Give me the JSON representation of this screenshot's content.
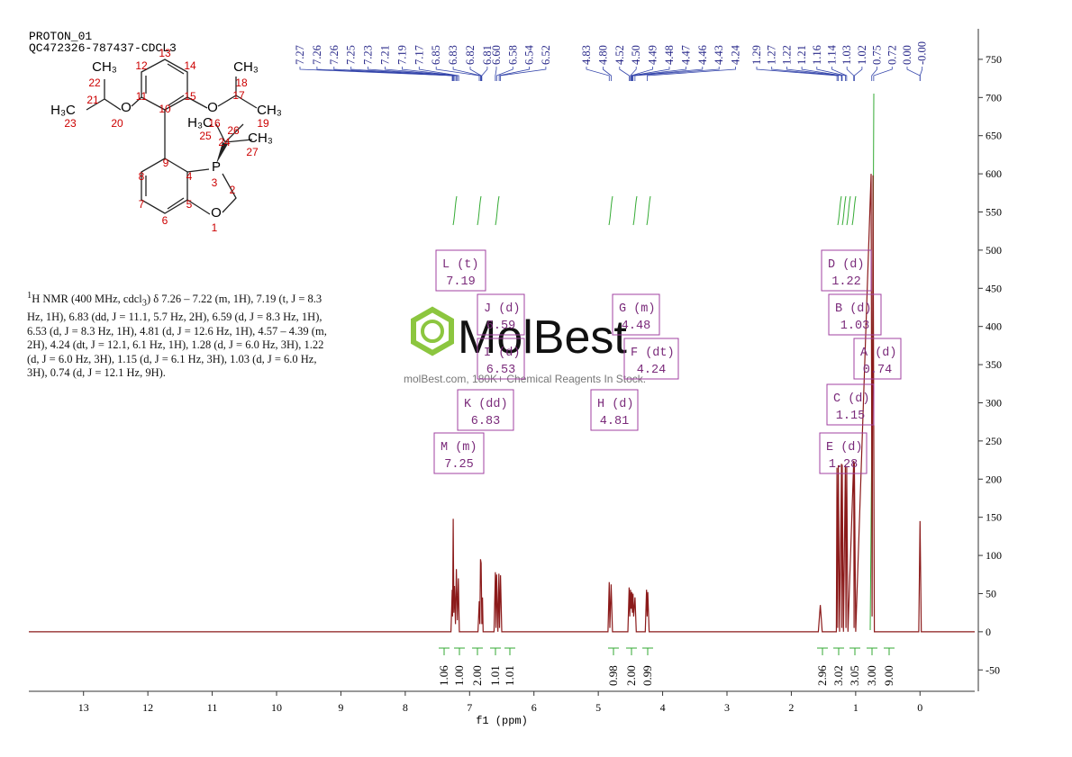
{
  "header": {
    "title": "PROTON_01",
    "sample": "QC472326-787437-CDCL3"
  },
  "molecule": {
    "atom_labels": [
      "CH₃",
      "H₃C",
      "O",
      "O",
      "CH₃",
      "CH₃",
      "H₃C",
      "CH₃",
      "P",
      "O"
    ],
    "atom_numbers": [
      "22",
      "21",
      "20",
      "23",
      "12",
      "13",
      "14",
      "11",
      "15",
      "10",
      "18",
      "17",
      "19",
      "16",
      "25",
      "26",
      "24",
      "27",
      "9",
      "8",
      "4",
      "3",
      "2",
      "7",
      "5",
      "6",
      "1"
    ]
  },
  "nmr_text": {
    "sup": "1",
    "a": "H NMR (400 MHz, cdcl",
    "sub": "3",
    "b": ") δ 7.26 – 7.22 (m, 1H), 7.19 (t, J = 8.3 Hz, 1H), 6.83 (dd, J = 11.1, 5.7 Hz, 2H), 6.59 (d, J = 8.3 Hz, 1H), 6.53 (d, J = 8.3 Hz, 1H), 4.81 (d, J = 12.6 Hz, 1H), 4.57 – 4.39 (m, 2H), 4.24 (dt, J = 12.1, 6.1 Hz, 1H), 1.28 (d, J = 6.0 Hz, 3H), 1.22 (d, J = 6.0 Hz, 3H), 1.15 (d, J = 6.1 Hz, 3H), 1.03 (d, J = 6.0 Hz, 3H), 0.74 (d, J = 12.1 Hz, 9H)."
  },
  "watermark": {
    "brand": "MolBest",
    "tagline": "molBest.com, 180K+ Chemical Reagents In Stock."
  },
  "chart_data": {
    "type": "line",
    "xlabel": "f1 (ppm)",
    "color": "#8b1a1a",
    "x": [
      13.85,
      7.29,
      7.27,
      7.265,
      7.255,
      7.245,
      7.235,
      7.22,
      7.205,
      7.19,
      7.175,
      7.16,
      6.87,
      6.85,
      6.84,
      6.83,
      6.82,
      6.81,
      6.8,
      6.79,
      6.62,
      6.6,
      6.59,
      6.58,
      6.56,
      6.545,
      6.535,
      6.52,
      6.5,
      4.85,
      4.83,
      4.82,
      4.8,
      4.78,
      4.54,
      4.52,
      4.51,
      4.5,
      4.49,
      4.48,
      4.47,
      4.46,
      4.45,
      4.43,
      4.41,
      4.27,
      4.25,
      4.24,
      4.23,
      4.21,
      1.58,
      1.55,
      1.52,
      1.3,
      1.29,
      1.28,
      1.27,
      1.25,
      1.22,
      1.215,
      1.21,
      1.19,
      1.16,
      1.15,
      1.14,
      1.12,
      1.03,
      1.025,
      1.02,
      1.0,
      0.76,
      0.745,
      0.73,
      0.71,
      0.02,
      0.0,
      -0.02,
      -0.85
    ],
    "values": [
      0,
      0,
      55,
      20,
      148,
      25,
      60,
      10,
      82,
      15,
      70,
      0,
      0,
      40,
      10,
      95,
      90,
      10,
      45,
      0,
      0,
      78,
      5,
      75,
      0,
      76,
      5,
      74,
      0,
      0,
      65,
      5,
      62,
      0,
      0,
      58,
      20,
      55,
      30,
      52,
      25,
      50,
      20,
      45,
      0,
      0,
      55,
      20,
      52,
      0,
      0,
      35,
      0,
      0,
      215,
      5,
      218,
      0,
      220,
      5,
      219,
      0,
      218,
      5,
      217,
      0,
      224,
      5,
      222,
      0,
      600,
      20,
      598,
      0,
      0,
      145,
      0,
      0
    ],
    "xlim": [
      13.85,
      -0.85
    ],
    "xticks": [
      13,
      12,
      11,
      10,
      9,
      8,
      7,
      6,
      5,
      4,
      3,
      2,
      1,
      0
    ],
    "ylim": [
      -78,
      790
    ],
    "yticks": [
      -50,
      0,
      50,
      100,
      150,
      200,
      250,
      300,
      350,
      400,
      450,
      500,
      550,
      600,
      650,
      700,
      750
    ],
    "peak_labels": [
      "7.27",
      "7.26",
      "7.26",
      "7.25",
      "7.23",
      "7.21",
      "7.19",
      "7.17",
      "6.85",
      "6.83",
      "6.82",
      "6.81",
      "6.60",
      "6.58",
      "6.54",
      "6.52",
      "4.83",
      "4.80",
      "4.52",
      "4.50",
      "4.49",
      "4.48",
      "4.47",
      "4.46",
      "4.43",
      "4.24",
      "1.29",
      "1.27",
      "1.22",
      "1.21",
      "1.16",
      "1.14",
      "1.03",
      "1.02",
      "0.75",
      "0.72",
      "0.00",
      "-0.00"
    ],
    "multiplets": [
      {
        "label": "L (t)",
        "shift": "7.19"
      },
      {
        "label": "J (d)",
        "shift": "6.59"
      },
      {
        "label": "I (d)",
        "shift": "6.53"
      },
      {
        "label": "K (dd)",
        "shift": "6.83"
      },
      {
        "label": "M (m)",
        "shift": "7.25"
      },
      {
        "label": "G (m)",
        "shift": "4.48"
      },
      {
        "label": "F (dt)",
        "shift": "4.24"
      },
      {
        "label": "H (d)",
        "shift": "4.81"
      },
      {
        "label": "D (d)",
        "shift": "1.22"
      },
      {
        "label": "B (d)",
        "shift": "1.03"
      },
      {
        "label": "A (d)",
        "shift": "0.74"
      },
      {
        "label": "C (d)",
        "shift": "1.15"
      },
      {
        "label": "E (d)",
        "shift": "1.28"
      }
    ],
    "integrals": [
      "1.06",
      "1.00",
      "2.00",
      "1.01",
      "1.01",
      "0.98",
      "2.00",
      "0.99",
      "2.96",
      "3.02",
      "3.05",
      "3.00",
      "9.00"
    ]
  }
}
